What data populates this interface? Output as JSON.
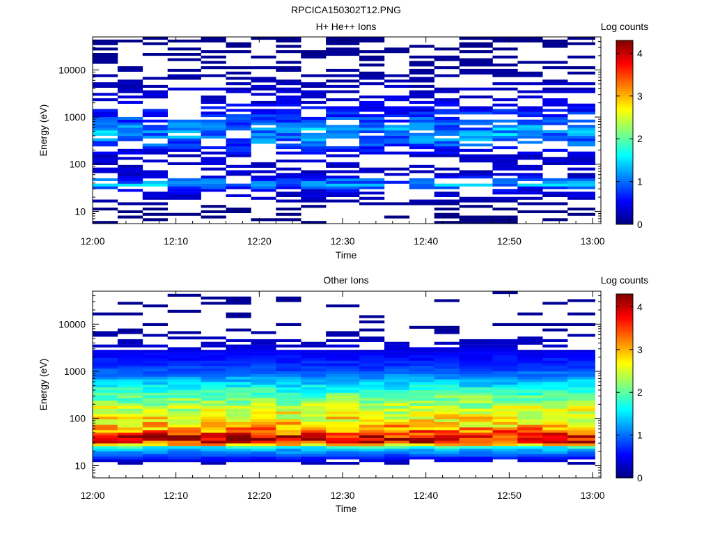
{
  "figure_title": "RPCICA150302T12.PNG",
  "chart_data": [
    {
      "type": "heatmap",
      "title": "H+ He++ Ions",
      "xlabel": "Time",
      "ylabel": "Energy (eV)",
      "x_ticks": [
        "12:00",
        "12:10",
        "12:20",
        "12:30",
        "12:40",
        "12:50",
        "13:00"
      ],
      "y_ticks": [
        "10",
        "100",
        "1000",
        "10000"
      ],
      "y_scale": "log",
      "ylim": [
        5.5,
        50000
      ],
      "colorbar": {
        "label": "Log counts",
        "range": [
          0,
          4.3
        ],
        "ticks": [
          "0",
          "1",
          "2",
          "3",
          "4"
        ]
      },
      "time_bins": [
        "12:00",
        "12:03",
        "12:06",
        "12:09",
        "12:13",
        "12:16",
        "12:19",
        "12:22",
        "12:25",
        "12:28",
        "12:32",
        "12:35",
        "12:38",
        "12:41",
        "12:44",
        "12:48",
        "12:51",
        "12:54",
        "12:57"
      ],
      "profile": [
        {
          "energy": 12,
          "value": 0
        },
        {
          "energy": 30,
          "value": 0.5
        },
        {
          "energy": 36,
          "value": 1.2
        },
        {
          "energy": 45,
          "value": 0.9
        },
        {
          "energy": 60,
          "value": 0.3
        },
        {
          "energy": 150,
          "value": 0.3
        },
        {
          "energy": 300,
          "value": 1.0
        },
        {
          "energy": 500,
          "value": 1.2
        },
        {
          "energy": 900,
          "value": 0.8
        },
        {
          "energy": 2000,
          "value": 0.4
        },
        {
          "energy": 10000,
          "value": 0.1
        },
        {
          "energy": 40000,
          "value": 0.05
        }
      ]
    },
    {
      "type": "heatmap",
      "title": "Other Ions",
      "xlabel": "Time",
      "ylabel": "Energy (eV)",
      "x_ticks": [
        "12:00",
        "12:10",
        "12:20",
        "12:30",
        "12:40",
        "12:50",
        "13:00"
      ],
      "y_ticks": [
        "10",
        "100",
        "1000",
        "10000"
      ],
      "y_scale": "log",
      "ylim": [
        5.5,
        50000
      ],
      "colorbar": {
        "label": "Log counts",
        "range": [
          0,
          4.3
        ],
        "ticks": [
          "0",
          "1",
          "2",
          "3",
          "4"
        ]
      },
      "time_bins": [
        "12:00",
        "12:03",
        "12:06",
        "12:09",
        "12:13",
        "12:16",
        "12:19",
        "12:22",
        "12:25",
        "12:28",
        "12:32",
        "12:35",
        "12:38",
        "12:41",
        "12:44",
        "12:48",
        "12:51",
        "12:54",
        "12:57"
      ],
      "profile": [
        {
          "energy": 10,
          "value": 0
        },
        {
          "energy": 24,
          "value": 1.5
        },
        {
          "energy": 30,
          "value": 3.6
        },
        {
          "energy": 38,
          "value": 4.2
        },
        {
          "energy": 50,
          "value": 3.5
        },
        {
          "energy": 70,
          "value": 3.0
        },
        {
          "energy": 120,
          "value": 2.7
        },
        {
          "energy": 250,
          "value": 2.2
        },
        {
          "energy": 500,
          "value": 1.6
        },
        {
          "energy": 1000,
          "value": 0.9
        },
        {
          "energy": 3000,
          "value": 0.4
        },
        {
          "energy": 8000,
          "value": 0.1
        }
      ]
    }
  ]
}
